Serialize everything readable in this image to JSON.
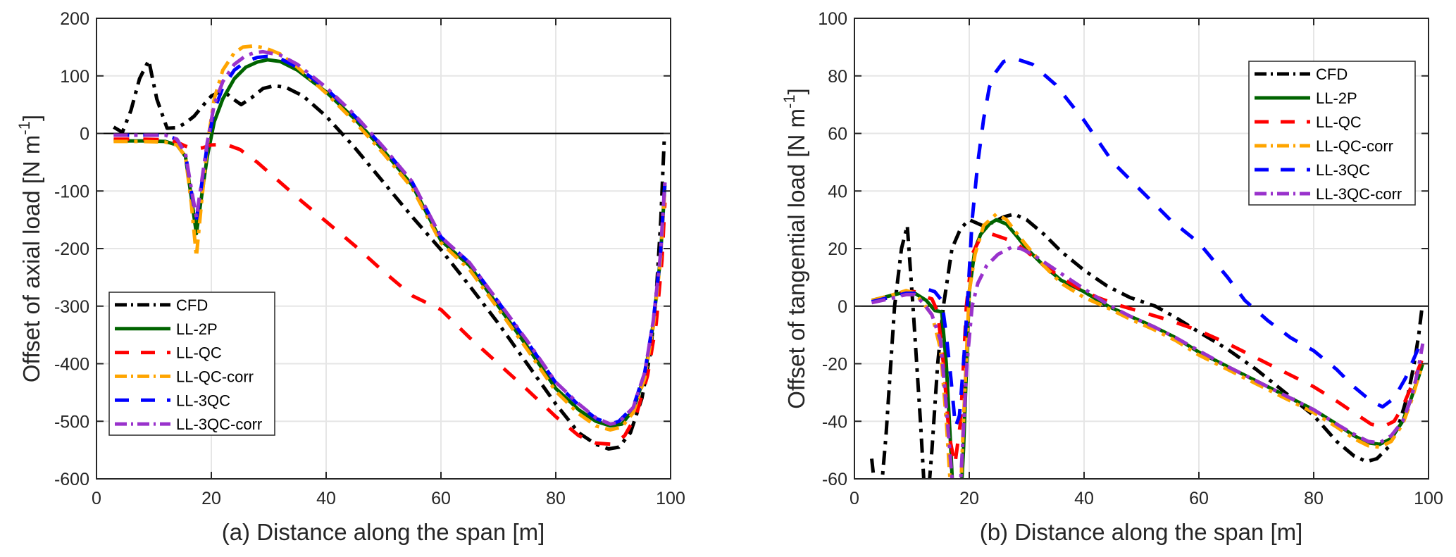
{
  "figure": {
    "legend_entries": [
      "CFD",
      "LL-2P",
      "LL-QC",
      "LL-QC-corr",
      "LL-3QC",
      "LL-3QC-corr"
    ]
  },
  "chart_data": [
    {
      "type": "line",
      "title": "",
      "xlabel": "(a) Distance along the span [m]",
      "ylabel": "Offset of axial load [N m",
      "ylabel_sup": "-1",
      "ylabel_end": "]",
      "xlim": [
        0,
        100
      ],
      "ylim": [
        -600,
        200
      ],
      "xticks": [
        0,
        20,
        40,
        60,
        80,
        100
      ],
      "yticks": [
        -600,
        -500,
        -400,
        -300,
        -200,
        -100,
        0,
        100,
        200
      ],
      "grid": true,
      "zero_line": true,
      "legend_position": "bottom-left",
      "series": [
        {
          "name": "CFD",
          "color": "#000000",
          "style": "dashdot",
          "x": [
            3,
            4.5,
            6,
            7.5,
            9.1,
            10.5,
            12.3,
            14,
            15.5,
            17,
            18.5,
            20,
            22,
            23.5,
            25.2,
            27,
            29,
            31,
            33,
            36,
            40,
            45,
            50,
            55,
            60,
            65,
            70,
            75,
            80,
            84,
            87,
            89.2,
            91,
            93,
            95,
            96.5,
            97.5,
            98.3,
            98.9
          ],
          "y": [
            11,
            2,
            40,
            95,
            127,
            60,
            9,
            10,
            18,
            30,
            48,
            65,
            75,
            62,
            50,
            62,
            78,
            83,
            80,
            65,
            30,
            -25,
            -85,
            -145,
            -202,
            -265,
            -330,
            -400,
            -470,
            -520,
            -540,
            -548,
            -545,
            -520,
            -460,
            -380,
            -280,
            -150,
            -10
          ]
        },
        {
          "name": "LL-2P",
          "color": "#006400",
          "style": "solid",
          "x": [
            3,
            8,
            12,
            14,
            15.5,
            16.5,
            17.4,
            18.3,
            19.3,
            20.5,
            22,
            24,
            26,
            28,
            29.8,
            32,
            35,
            40,
            45,
            50,
            55,
            60,
            65,
            70,
            75,
            80,
            84,
            87,
            89.5,
            91.5,
            93.5,
            95.5,
            97,
            98.2,
            99
          ],
          "y": [
            -13,
            -13,
            -14,
            -20,
            -40,
            -110,
            -174,
            -110,
            -40,
            20,
            60,
            95,
            115,
            124,
            128,
            125,
            110,
            72,
            25,
            -30,
            -90,
            -186,
            -230,
            -300,
            -370,
            -443,
            -480,
            -500,
            -508,
            -505,
            -480,
            -420,
            -330,
            -220,
            -90
          ]
        },
        {
          "name": "LL-QC",
          "color": "#ff0000",
          "style": "dashed",
          "x": [
            3,
            8,
            12,
            14,
            15.5,
            17,
            18.5,
            20,
            22.5,
            25,
            28,
            32,
            36,
            40,
            45,
            50,
            55,
            60,
            65,
            70,
            75,
            80,
            84,
            87,
            90,
            92,
            94,
            96,
            97.5,
            98.5,
            99
          ],
          "y": [
            -10,
            -10,
            -11,
            -15,
            -22,
            -27,
            -25,
            -20,
            -19,
            -28,
            -50,
            -85,
            -120,
            -153,
            -195,
            -240,
            -282,
            -306,
            -355,
            -400,
            -445,
            -492,
            -525,
            -538,
            -540,
            -525,
            -490,
            -420,
            -330,
            -220,
            -120
          ]
        },
        {
          "name": "LL-QC-corr",
          "color": "#ffa500",
          "style": "dashdot",
          "x": [
            3,
            8,
            12,
            14,
            15.5,
            16.5,
            17.4,
            18.3,
            19.3,
            20.5,
            22,
            24,
            25.5,
            27.4,
            29.5,
            32,
            35,
            40,
            45,
            50,
            55,
            60,
            65,
            70,
            75,
            80,
            84,
            87,
            89.5,
            91.5,
            93.5,
            95.5,
            97,
            98.2,
            99
          ],
          "y": [
            -14,
            -14,
            -15,
            -20,
            -40,
            -120,
            -214,
            -120,
            -20,
            60,
            110,
            140,
            150,
            152,
            148,
            138,
            115,
            70,
            20,
            -35,
            -95,
            -190,
            -237,
            -305,
            -375,
            -448,
            -487,
            -508,
            -515,
            -510,
            -485,
            -425,
            -335,
            -225,
            -95
          ]
        },
        {
          "name": "LL-3QC",
          "color": "#0000ff",
          "style": "dashed",
          "x": [
            3,
            8,
            12,
            14,
            15.5,
            16.5,
            17.4,
            18.3,
            19.3,
            20.5,
            22,
            24,
            26,
            28,
            29.8,
            32,
            35,
            40,
            45,
            50,
            55,
            60,
            65,
            70,
            75,
            80,
            84,
            87,
            89.5,
            91,
            93.5,
            95.5,
            97,
            98.2,
            99
          ],
          "y": [
            -3,
            -3,
            -3,
            -10,
            -35,
            -100,
            -150,
            -90,
            -20,
            40,
            80,
            110,
            125,
            132,
            134,
            130,
            115,
            78,
            30,
            -25,
            -85,
            -180,
            -225,
            -293,
            -362,
            -433,
            -472,
            -495,
            -505,
            -500,
            -475,
            -415,
            -325,
            -215,
            -85
          ]
        },
        {
          "name": "LL-3QC-corr",
          "color": "#9932cc",
          "style": "dashdot",
          "x": [
            3,
            8,
            12,
            14,
            15.5,
            16.5,
            17.4,
            18.3,
            19.3,
            20.5,
            22,
            24,
            26,
            27.5,
            29,
            32,
            35,
            40,
            45,
            50,
            55,
            60,
            65,
            70,
            75,
            80,
            84,
            87,
            89.5,
            91,
            93.5,
            95.5,
            97,
            98.2,
            99
          ],
          "y": [
            -3,
            -3,
            -3,
            -10,
            -35,
            -95,
            -146,
            -85,
            -15,
            50,
            90,
            120,
            135,
            140,
            142,
            136,
            120,
            80,
            32,
            -24,
            -84,
            -180,
            -225,
            -292,
            -360,
            -432,
            -470,
            -494,
            -505,
            -502,
            -476,
            -415,
            -325,
            -215,
            -85
          ]
        }
      ]
    },
    {
      "type": "line",
      "title": "",
      "xlabel": "(b) Distance along the span [m]",
      "ylabel": "Offset of tangential load [N m",
      "ylabel_sup": "-1",
      "ylabel_end": "]",
      "xlim": [
        0,
        100
      ],
      "ylim": [
        -60,
        100
      ],
      "xticks": [
        0,
        20,
        40,
        60,
        80,
        100
      ],
      "yticks": [
        -60,
        -40,
        -20,
        0,
        20,
        40,
        60,
        80,
        100
      ],
      "grid": true,
      "zero_line": true,
      "legend_position": "top-right",
      "series": [
        {
          "name": "CFD",
          "color": "#000000",
          "style": "dashdot",
          "x": [
            3,
            4.2,
            5.5,
            7,
            8.2,
            9.2,
            10.2,
            11.5,
            12.5,
            13.5,
            14.5,
            15.5,
            17,
            18.5,
            20,
            22.3,
            24,
            26,
            27.8,
            30,
            33,
            36,
            40,
            44,
            48,
            52.4,
            56,
            60,
            65,
            70,
            75,
            80,
            84,
            87,
            89.2,
            91,
            93,
            95,
            96.5,
            97.5,
            98.3,
            98.9
          ],
          "y": [
            -53,
            -75,
            -45,
            0,
            20,
            28,
            0,
            -40,
            -75,
            -50,
            -20,
            0,
            20,
            27,
            30,
            28,
            29,
            31,
            32,
            30,
            25,
            19,
            12.5,
            7,
            3,
            0,
            -4,
            -9,
            -15,
            -22,
            -30,
            -38,
            -47,
            -52,
            -54,
            -53,
            -49,
            -40,
            -30,
            -20,
            -10,
            0
          ]
        },
        {
          "name": "LL-2P",
          "color": "#006400",
          "style": "solid",
          "x": [
            3,
            6,
            9,
            10.5,
            12.5,
            14,
            15.2,
            16,
            16.8,
            17.5,
            18.2,
            19,
            20,
            21,
            22,
            23.5,
            24.7,
            26.5,
            28,
            30,
            33,
            36,
            40,
            44.2,
            48,
            52,
            56,
            60,
            65,
            70,
            75,
            80,
            84,
            87,
            89.5,
            91.5,
            93.5,
            95.5,
            97,
            98.2,
            99
          ],
          "y": [
            2,
            3.5,
            5,
            4.5,
            2,
            -1.5,
            -2,
            -20,
            -50,
            -80,
            -80,
            -50,
            5,
            20,
            25,
            28.5,
            30,
            28.5,
            25,
            20,
            14,
            9,
            5,
            0,
            -3.5,
            -7,
            -11,
            -16,
            -21,
            -26,
            -31,
            -36,
            -41,
            -45,
            -47.5,
            -48,
            -46,
            -40,
            -32,
            -25,
            -20
          ]
        },
        {
          "name": "LL-QC",
          "color": "#ff0000",
          "style": "dashed",
          "x": [
            3,
            6,
            9,
            10.5,
            12,
            13.5,
            14.5,
            15.5,
            16.5,
            17.5,
            18.5,
            19.5,
            20.5,
            22,
            24,
            26.2,
            28,
            30,
            33,
            36,
            40,
            43,
            46.6,
            50,
            55,
            60,
            65,
            70,
            75,
            80,
            84,
            87,
            90,
            92,
            94,
            95.5,
            97,
            98.2,
            99
          ],
          "y": [
            1.5,
            3,
            5,
            5,
            3.5,
            2.5,
            -2,
            -20,
            -45,
            -55,
            -40,
            0,
            18,
            24,
            25,
            23.5,
            22,
            19,
            14,
            10,
            5,
            2.5,
            0,
            -2,
            -5,
            -8.5,
            -13,
            -18,
            -23,
            -28,
            -33,
            -37,
            -41,
            -42,
            -40,
            -35,
            -28,
            -22,
            -18
          ]
        },
        {
          "name": "LL-QC-corr",
          "color": "#ffa500",
          "style": "dashdot",
          "x": [
            3,
            6,
            9,
            10.5,
            12,
            13.5,
            15,
            16,
            16.8,
            17.5,
            18.2,
            19,
            20,
            21,
            22.5,
            24.7,
            26.5,
            28,
            30,
            33,
            36,
            40,
            43.5,
            48,
            52,
            56,
            60,
            65,
            70,
            75,
            80,
            84,
            87,
            89.5,
            91.5,
            93.5,
            95.5,
            97,
            98.2,
            99
          ],
          "y": [
            2,
            3.5,
            5.4,
            4.5,
            1,
            -3,
            -15,
            -40,
            -65,
            -80,
            -80,
            -40,
            5,
            18,
            28,
            32,
            30,
            26,
            21,
            14,
            8,
            3,
            0,
            -4.5,
            -8,
            -12,
            -17,
            -22,
            -27,
            -32,
            -37,
            -42,
            -46,
            -48.5,
            -49,
            -47,
            -41,
            -33,
            -25,
            -20
          ]
        },
        {
          "name": "LL-3QC",
          "color": "#0000ff",
          "style": "dashed",
          "x": [
            3,
            6,
            9,
            10.5,
            12.5,
            14,
            15.2,
            16,
            16.8,
            17.6,
            18.3,
            19,
            19.8,
            20.5,
            21.5,
            22.5,
            23.5,
            24.5,
            26,
            28,
            31,
            35,
            40,
            45,
            50,
            55,
            60,
            65,
            68,
            72,
            76,
            80,
            84,
            87,
            90,
            92,
            94,
            96,
            97.5,
            98.7
          ],
          "y": [
            1.5,
            3,
            4.5,
            4.5,
            6,
            5,
            2,
            -10,
            -25,
            -42,
            -38,
            -20,
            5,
            30,
            50,
            65,
            76,
            81,
            85,
            86,
            84,
            77,
            64.5,
            50,
            40,
            30,
            22,
            10,
            2,
            -5,
            -11,
            -15.5,
            -22,
            -28,
            -33,
            -35,
            -32,
            -25,
            -18,
            -12.5
          ]
        },
        {
          "name": "LL-3QC-corr",
          "color": "#9932cc",
          "style": "dashdot",
          "x": [
            3,
            6,
            9,
            10.5,
            12,
            13.5,
            15,
            16,
            17,
            18,
            18.8,
            19.6,
            20.5,
            21.5,
            23,
            25,
            27.4,
            29,
            31,
            34,
            37,
            40,
            44.2,
            48,
            52,
            56,
            60,
            65,
            70,
            75,
            80,
            84,
            87,
            89.5,
            91.5,
            93.5,
            95.5,
            97,
            98.2,
            99
          ],
          "y": [
            1.2,
            2.5,
            4,
            4,
            1,
            -3,
            -12,
            -35,
            -60,
            -80,
            -50,
            -20,
            0,
            8,
            14,
            18,
            20.5,
            20,
            18,
            14,
            10,
            6,
            0.5,
            -3.5,
            -7,
            -11,
            -15.5,
            -21,
            -26,
            -31,
            -36,
            -41,
            -44.5,
            -47,
            -47.5,
            -45,
            -40,
            -32,
            -22,
            -13
          ]
        }
      ]
    }
  ]
}
